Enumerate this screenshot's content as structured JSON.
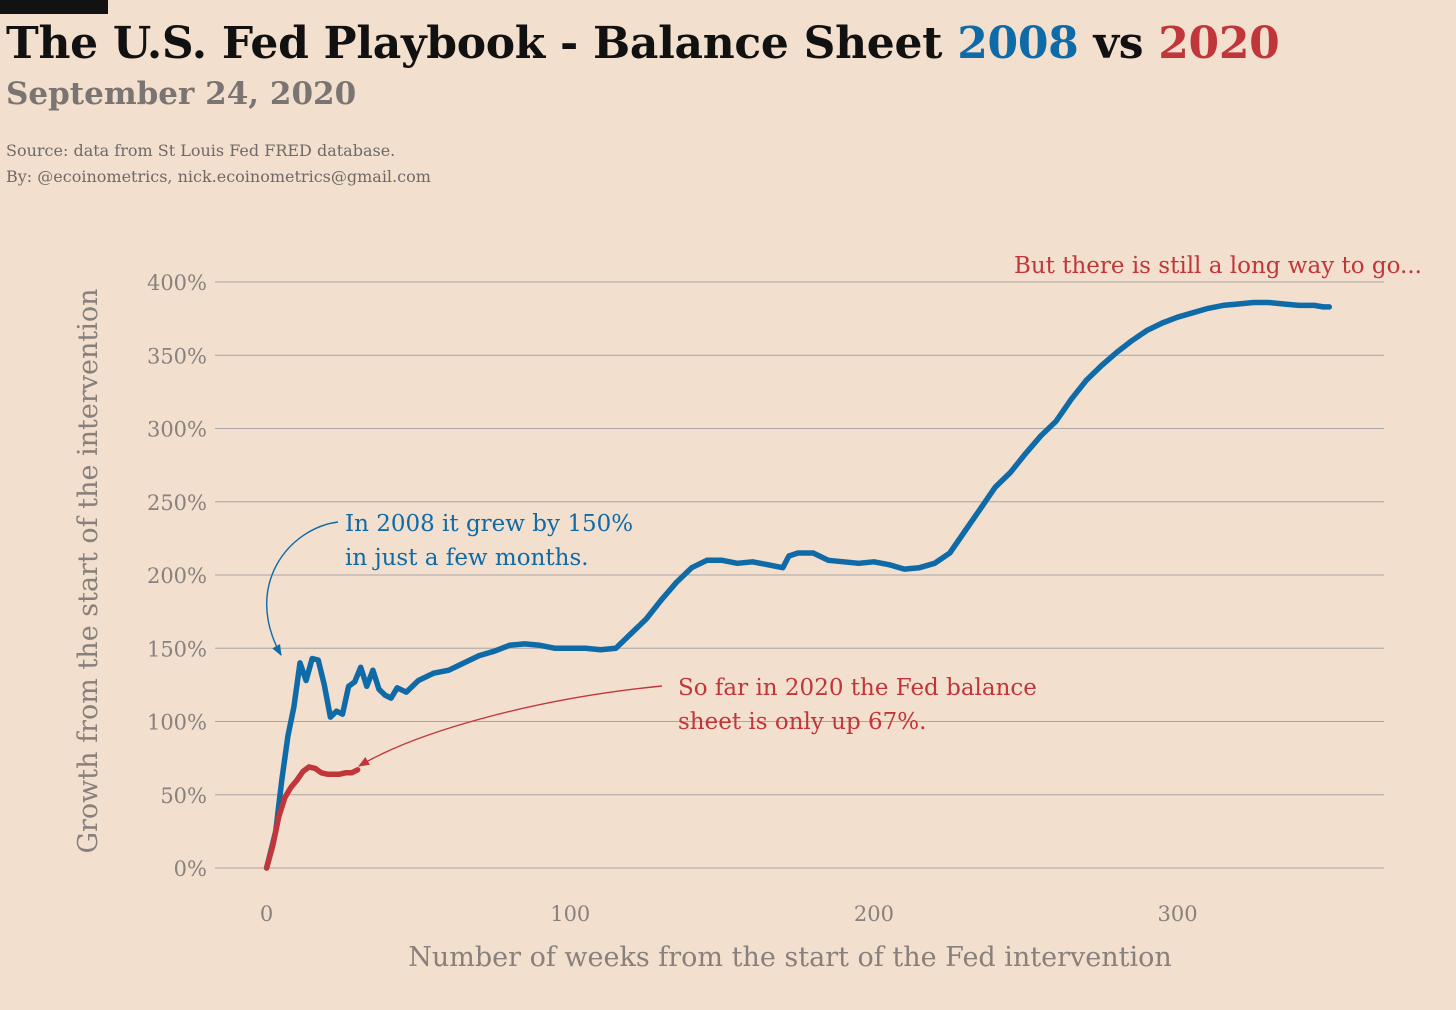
{
  "header": {
    "title_prefix": "The U.S. Fed Playbook - Balance Sheet ",
    "title_year_a": "2008",
    "title_vs": " vs ",
    "title_year_b": "2020",
    "subtitle": "September 24, 2020",
    "source_line": "Source: data from  St Louis Fed FRED database.",
    "by_line": "By: @ecoinometrics, nick.ecoinometrics@gmail.com"
  },
  "colors": {
    "background": "#f2dfcd",
    "series_2008": "#0f6aa8",
    "series_2020": "#c1363a",
    "grid": "#a9a6a7",
    "title": "#111111",
    "muted": "#7a7472"
  },
  "chart_data": {
    "type": "line",
    "xlabel": "Number of weeks from the start of the Fed intervention",
    "ylabel": "Growth from the start of the intervention",
    "xlim": [
      -17,
      368
    ],
    "ylim": [
      0,
      400
    ],
    "x_ticks": [
      0,
      100,
      200,
      300
    ],
    "x_tick_labels": [
      "0",
      "100",
      "200",
      "300"
    ],
    "y_ticks": [
      0,
      50,
      100,
      150,
      200,
      250,
      300,
      350,
      400
    ],
    "y_tick_labels": [
      "0%",
      "50%",
      "100%",
      "150%",
      "200%",
      "250%",
      "300%",
      "350%",
      "400%"
    ],
    "grid": "horizontal",
    "series": [
      {
        "name": "2008",
        "color": "#0f6aa8",
        "x": [
          0,
          3,
          5,
          7,
          9,
          11,
          13,
          15,
          17,
          19,
          21,
          23,
          25,
          27,
          29,
          31,
          33,
          35,
          37,
          39,
          41,
          43,
          46,
          50,
          55,
          60,
          65,
          70,
          75,
          80,
          85,
          90,
          95,
          100,
          105,
          110,
          115,
          120,
          125,
          130,
          135,
          140,
          145,
          150,
          155,
          160,
          165,
          170,
          172,
          175,
          180,
          185,
          190,
          195,
          200,
          205,
          210,
          215,
          220,
          225,
          230,
          235,
          240,
          245,
          250,
          255,
          260,
          265,
          270,
          275,
          280,
          285,
          290,
          295,
          300,
          305,
          310,
          315,
          320,
          325,
          330,
          335,
          340,
          345,
          348,
          350
        ],
        "y": [
          0,
          25,
          60,
          90,
          110,
          140,
          128,
          143,
          142,
          125,
          103,
          107,
          105,
          124,
          127,
          137,
          124,
          135,
          122,
          118,
          116,
          123,
          120,
          128,
          133,
          135,
          140,
          145,
          148,
          152,
          153,
          152,
          150,
          150,
          150,
          149,
          150,
          160,
          170,
          183,
          195,
          205,
          210,
          210,
          208,
          209,
          207,
          205,
          213,
          215,
          215,
          210,
          209,
          208,
          209,
          207,
          204,
          205,
          208,
          215,
          230,
          245,
          260,
          270,
          283,
          295,
          305,
          320,
          333,
          343,
          352,
          360,
          367,
          372,
          376,
          379,
          382,
          384,
          385,
          386,
          386,
          385,
          384,
          384,
          383,
          383
        ]
      },
      {
        "name": "2020",
        "color": "#c1363a",
        "x": [
          0,
          2,
          4,
          6,
          8,
          10,
          12,
          14,
          16,
          18,
          20,
          22,
          24,
          26,
          28,
          30
        ],
        "y": [
          0,
          15,
          35,
          48,
          55,
          60,
          66,
          69,
          68,
          65,
          64,
          64,
          64,
          65,
          65,
          67
        ]
      }
    ],
    "annotations": [
      {
        "lines": [
          "In 2008 it grew by 150%",
          "in just a few months."
        ],
        "color": "#0f6aa8"
      },
      {
        "lines": [
          "So far in 2020 the Fed balance",
          "sheet is only up 67%."
        ],
        "color": "#c1363a"
      },
      {
        "lines": [
          "But there is still a long way to go..."
        ],
        "color": "#c1363a"
      }
    ]
  }
}
